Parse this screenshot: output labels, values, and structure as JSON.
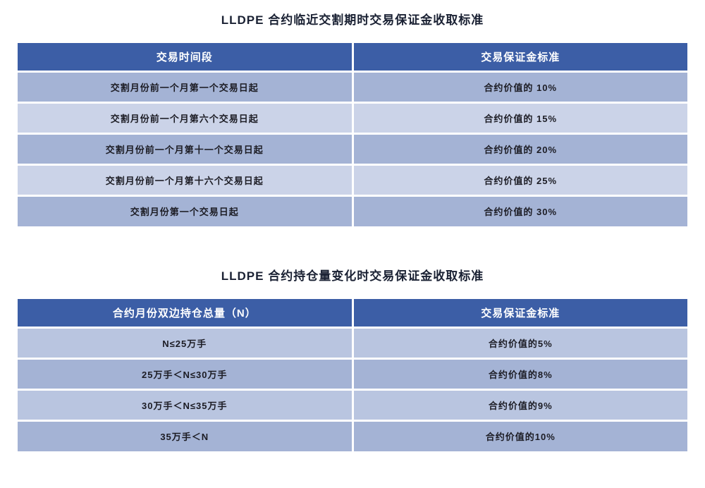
{
  "colors": {
    "header_bg": "#3c5ea6",
    "header_text": "#ffffff",
    "row_dark": "#a4b3d5",
    "row_medium": "#b9c5e0",
    "row_light": "#cbd3e8",
    "title_text": "#1a2133",
    "cell_text": "#1c1c24",
    "page_bg": "#ffffff"
  },
  "tables": [
    {
      "title": "LLDPE 合约临近交割期时交易保证金收取标准",
      "headers": [
        "交易时间段",
        "交易保证金标准"
      ],
      "rows": [
        [
          "交割月份前一个月第一个交易日起",
          "合约价值的 10%"
        ],
        [
          "交割月份前一个月第六个交易日起",
          "合约价值的 15%"
        ],
        [
          "交割月份前一个月第十一个交易日起",
          "合约价值的 20%"
        ],
        [
          "交割月份前一个月第十六个交易日起",
          "合约价值的 25%"
        ],
        [
          "交割月份第一个交易日起",
          "合约价值的 30%"
        ]
      ],
      "row_shades": [
        "dark",
        "light",
        "dark",
        "light",
        "dark"
      ]
    },
    {
      "title": "LLDPE 合约持仓量变化时交易保证金收取标准",
      "headers": [
        "合约月份双边持仓总量（N）",
        "交易保证金标准"
      ],
      "rows": [
        [
          "N≤25万手",
          "合约价值的5%"
        ],
        [
          "25万手＜N≤30万手",
          "合约价值的8%"
        ],
        [
          "30万手＜N≤35万手",
          "合约价值的9%"
        ],
        [
          "35万手＜N",
          "合约价值的10%"
        ]
      ],
      "row_shades": [
        "medium",
        "dark",
        "medium",
        "dark"
      ]
    }
  ]
}
